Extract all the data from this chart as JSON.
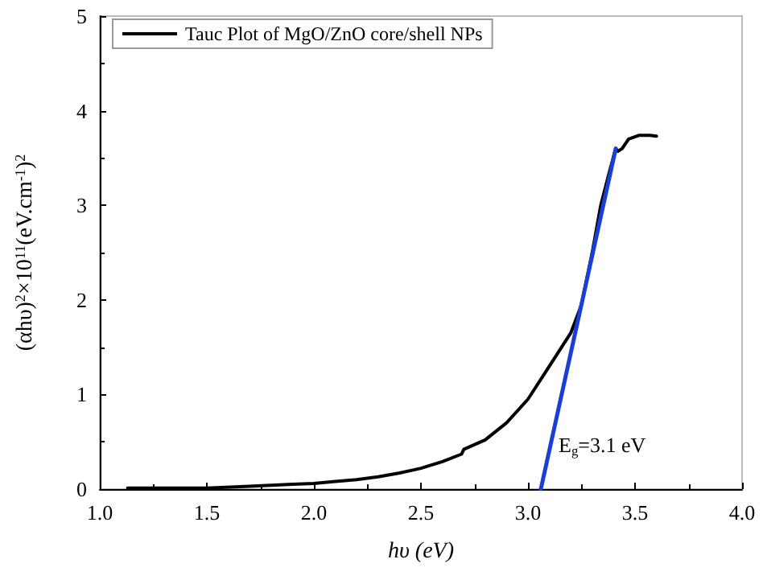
{
  "chart_data": {
    "type": "line",
    "xlabel": "hυ (eV)",
    "ylabel": "(αhυ)$^{2}$×10$^{11}$(eV.cm$^{-1}$)$^{2}$",
    "xlim": [
      1.0,
      4.0
    ],
    "xticks": [
      {
        "value": 1.0,
        "label": "1.0"
      },
      {
        "value": 1.5,
        "label": "1.5"
      },
      {
        "value": 2.0,
        "label": "2.0"
      },
      {
        "value": 2.5,
        "label": "2.5"
      },
      {
        "value": 3.0,
        "label": "3.0"
      },
      {
        "value": 3.5,
        "label": "3.5"
      },
      {
        "value": 4.0,
        "label": "4.0"
      }
    ],
    "ylim": [
      0,
      5
    ],
    "yticks": [
      0,
      1,
      2,
      3,
      4,
      5
    ],
    "grid": false,
    "legend": "top left",
    "marker": "none",
    "line_style": "solid",
    "series": [
      {
        "name": "Tauc Plot of MgO/ZnO core/shell NPs",
        "color": "#000000",
        "x": [
          1.13,
          1.3,
          1.5,
          1.7,
          1.9,
          2.0,
          2.1,
          2.2,
          2.3,
          2.4,
          2.5,
          2.6,
          2.69,
          2.7,
          2.8,
          2.9,
          3.0,
          3.1,
          3.2,
          3.25,
          3.3,
          3.34,
          3.38,
          3.41,
          3.42,
          3.44,
          3.47,
          3.52,
          3.57,
          3.6
        ],
        "values": [
          0.01,
          0.01,
          0.01,
          0.03,
          0.05,
          0.06,
          0.08,
          0.1,
          0.13,
          0.17,
          0.22,
          0.29,
          0.37,
          0.42,
          0.52,
          0.7,
          0.95,
          1.3,
          1.65,
          1.95,
          2.5,
          3.0,
          3.35,
          3.6,
          3.57,
          3.6,
          3.7,
          3.74,
          3.74,
          3.73
        ]
      },
      {
        "color": "#1a3fd6",
        "x": [
          3.06,
          3.41
        ],
        "values": [
          0,
          3.6
        ]
      }
    ],
    "annotations": [
      "E$_{g}$=3.1 eV"
    ]
  }
}
